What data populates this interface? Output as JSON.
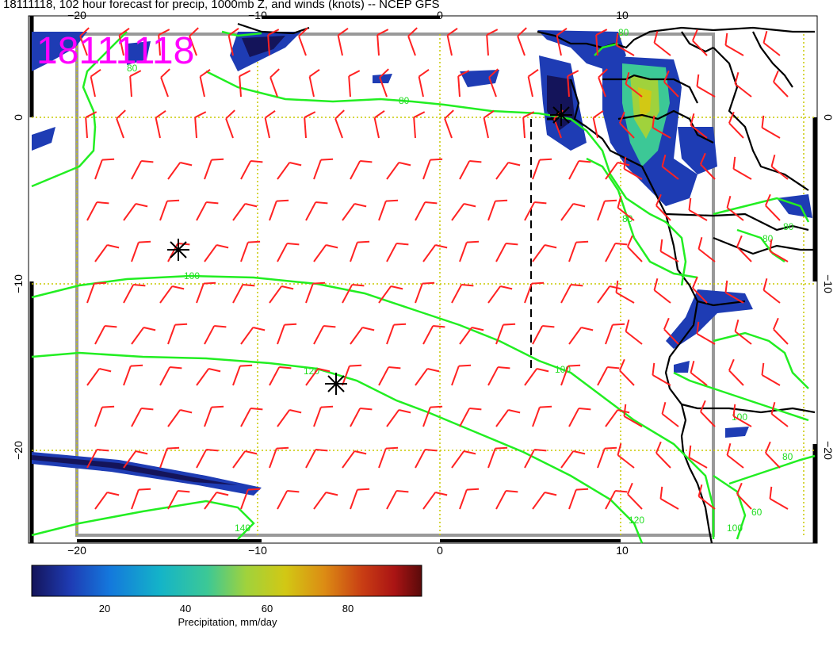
{
  "title": "18111118, 102 hour forecast for precip, 1000mb Z, and winds (knots) -- NCEP GFS",
  "stamp": "18111118",
  "axes": {
    "lon_ticks": [
      "−20",
      "−10",
      "0",
      "10"
    ],
    "lat_ticks": [
      "0",
      "−10",
      "−20"
    ]
  },
  "contours": {
    "color": "#22ee22",
    "labels": [
      "80",
      "100",
      "120",
      "140",
      "80",
      "80",
      "100",
      "120",
      "80",
      "100",
      "80",
      "80",
      "100",
      "60",
      "80"
    ]
  },
  "wind_barb_color": "#ff2222",
  "precip_colors": [
    "#14145a",
    "#1e3cb4",
    "#1478dc",
    "#14b4c8",
    "#3cc896",
    "#a0d23c",
    "#d2c814",
    "#dc8c14",
    "#c83c14",
    "#aa1414",
    "#5a0a0a"
  ],
  "colorbar": {
    "ticks": [
      "20",
      "40",
      "60",
      "80"
    ],
    "label": "Precipitation, mm/day"
  },
  "markers": [
    "storm-marker",
    "storm-marker",
    "storm-marker"
  ]
}
